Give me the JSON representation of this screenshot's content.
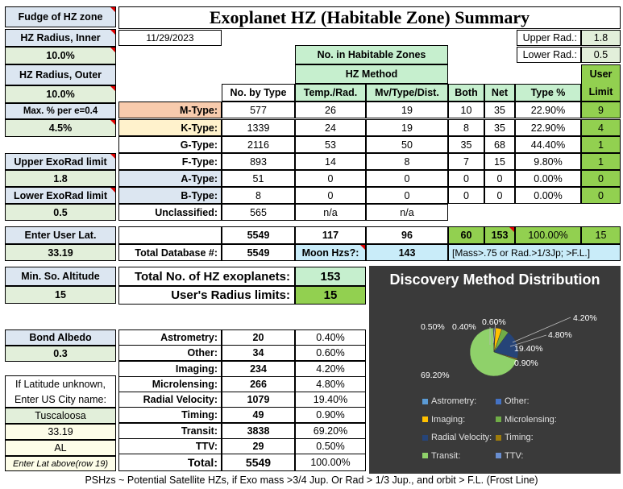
{
  "left": {
    "fudge_title": "Fudge of HZ zone",
    "hz_inner_label": "HZ Radius, Inner",
    "hz_inner_value": "10.0%",
    "hz_outer_label": "HZ Radius, Outer",
    "hz_outer_value": "10.0%",
    "max_pct_label": "Max. % per e=0.4",
    "max_pct_value": "4.5%",
    "upper_exorad_label": "Upper ExoRad limit",
    "upper_exorad_value": "1.8",
    "lower_exorad_label": "Lower ExoRad limit",
    "lower_exorad_value": "0.5",
    "user_lat_label": "Enter User Lat.",
    "user_lat_value": "33.19",
    "min_alt_label": "Min. So. Altitude",
    "min_alt_value": "15",
    "bond_albedo_label": "Bond Albedo",
    "bond_albedo_value": "0.3",
    "lat_unknown_line1": "If Latitude unknown,",
    "lat_unknown_line2": "Enter US City name:",
    "city": "Tuscaloosa",
    "city_lat": "33.19",
    "state": "AL",
    "enter_lat_note": "Enter Lat above(row 19)"
  },
  "header": {
    "title": "Exoplanet HZ (Habitable Zone) Summary",
    "date": "11/29/2023",
    "upper_rad_label": "Upper Rad.:",
    "upper_rad_value": "1.8",
    "lower_rad_label": "Lower Rad.:",
    "lower_rad_value": "0.5",
    "no_in_hz": "No. in Habitable Zones",
    "hz_method": "HZ Method",
    "user_limit_1": "User",
    "user_limit_2": "Limit"
  },
  "table": {
    "col_headers": [
      "No. by Type",
      "Temp./Rad.",
      "Mv/Type/Dist.",
      "Both",
      "Net",
      "Type %"
    ],
    "rows": [
      {
        "label": "M-Type:",
        "by_type": "577",
        "temp": "26",
        "mv": "19",
        "both": "10",
        "net": "35",
        "pct": "22.90%",
        "user": "9"
      },
      {
        "label": "K-Type:",
        "by_type": "1339",
        "temp": "24",
        "mv": "19",
        "both": "8",
        "net": "35",
        "pct": "22.90%",
        "user": "4"
      },
      {
        "label": "G-Type:",
        "by_type": "2116",
        "temp": "53",
        "mv": "50",
        "both": "35",
        "net": "68",
        "pct": "44.40%",
        "user": "1"
      },
      {
        "label": "F-Type:",
        "by_type": "893",
        "temp": "14",
        "mv": "8",
        "both": "7",
        "net": "15",
        "pct": "9.80%",
        "user": "1"
      },
      {
        "label": "A-Type:",
        "by_type": "51",
        "temp": "0",
        "mv": "0",
        "both": "0",
        "net": "0",
        "pct": "0.00%",
        "user": "0"
      },
      {
        "label": "B-Type:",
        "by_type": "8",
        "temp": "0",
        "mv": "0",
        "both": "0",
        "net": "0",
        "pct": "0.00%",
        "user": "0"
      }
    ],
    "unclassified_label": "Unclassified:",
    "unclassified_value": "565",
    "unclassified_temp": "n/a",
    "unclassified_mv": "n/a",
    "totals": {
      "by_type": "5549",
      "temp": "117",
      "mv": "96",
      "both": "60",
      "net": "153",
      "pct": "100.00%",
      "user": "15"
    },
    "total_db_label": "Total Database #:",
    "total_db_value": "5549",
    "moon_label": "Moon Hzs?:",
    "moon_value": "143",
    "moon_note": "[Mass>.75 or Rad.>1/3Jp; >F.L.]"
  },
  "summary": {
    "total_hz_label": "Total No. of HZ exoplanets:",
    "total_hz_value": "153",
    "radius_limits_label": "User's Radius limits:",
    "radius_limits_value": "15"
  },
  "discovery": {
    "rows": [
      {
        "label": "Astrometry:",
        "count": "20",
        "pct": "0.40%"
      },
      {
        "label": "Other:",
        "count": "34",
        "pct": "0.60%"
      },
      {
        "label": "Imaging:",
        "count": "234",
        "pct": "4.20%"
      },
      {
        "label": "Microlensing:",
        "count": "266",
        "pct": "4.80%"
      },
      {
        "label": "Radial Velocity:",
        "count": "1079",
        "pct": "19.40%"
      },
      {
        "label": "Timing:",
        "count": "49",
        "pct": "0.90%"
      },
      {
        "label": "Transit:",
        "count": "3838",
        "pct": "69.20%"
      },
      {
        "label": "TTV:",
        "count": "29",
        "pct": "0.50%"
      }
    ],
    "total_label": "Total:",
    "total_count": "5549",
    "total_pct": "100.00%"
  },
  "chart_data": {
    "type": "pie",
    "title": "Discovery Method Distribution",
    "categories": [
      "Astrometry",
      "Other",
      "Imaging",
      "Microlensing",
      "Radial Velocity",
      "Timing",
      "Transit",
      "TTV"
    ],
    "values": [
      0.4,
      0.6,
      4.2,
      4.8,
      19.4,
      0.9,
      69.2,
      0.5
    ],
    "data_labels": [
      "0.40%",
      "0.60%",
      "4.20%",
      "4.80%",
      "19.40%",
      "0.90%",
      "69.20%",
      "0.50%"
    ],
    "colors": [
      "#5b9bd5",
      "#4472c4",
      "#ffc000",
      "#70ad47",
      "#264478",
      "#9e7c0c",
      "#8fd16a",
      "#698ed0"
    ],
    "legend": [
      "Astrometry:",
      "Other:",
      "Imaging:",
      "Microlensing:",
      "Radial Velocity:",
      "Timing:",
      "Transit:",
      "TTV:"
    ],
    "legend_placement": "bottom"
  },
  "footer": {
    "note": "PSHzs ~ Potential Satellite HZs, if Exo mass >3/4 Jup. Or Rad > 1/3 Jup., and orbit > F.L. (Frost Line)"
  }
}
